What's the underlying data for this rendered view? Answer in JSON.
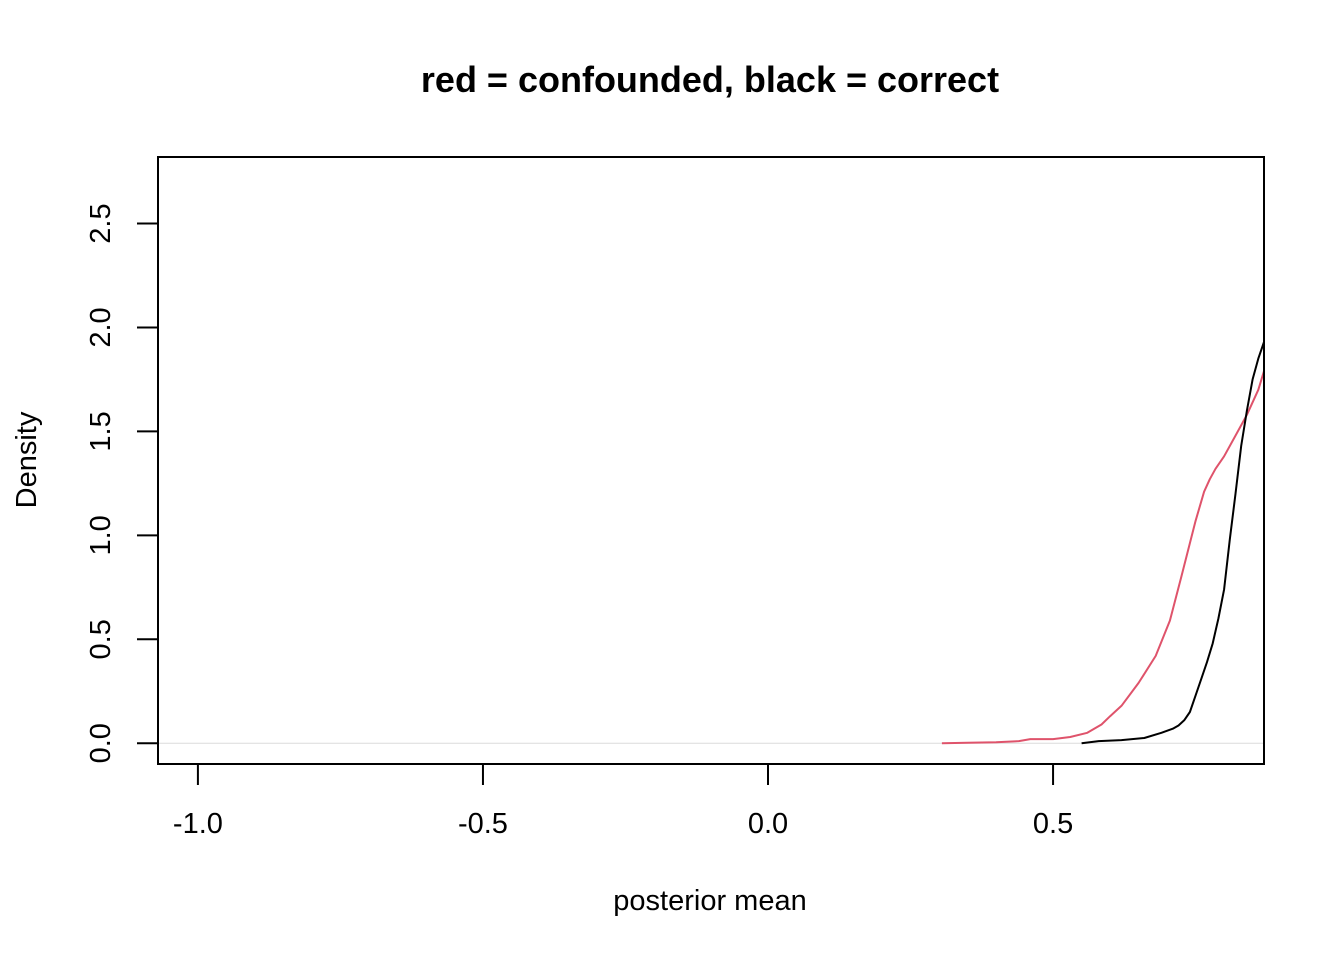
{
  "chart_data": {
    "type": "line",
    "title": "red = confounded, black = correct",
    "xlabel": "posterior mean",
    "ylabel": "Density",
    "xlim": [
      -1.07,
      0.87
    ],
    "ylim": [
      -0.1,
      2.82
    ],
    "x_ticks": [
      -1.0,
      -0.5,
      0.0,
      0.5
    ],
    "x_tick_labels": [
      "-1.0",
      "-0.5",
      "0.0",
      "0.5"
    ],
    "y_ticks": [
      0.0,
      0.5,
      1.0,
      1.5,
      2.0,
      2.5
    ],
    "y_tick_labels": [
      "0.0",
      "0.5",
      "1.0",
      "1.5",
      "2.0",
      "2.5"
    ],
    "grid": false,
    "zero_line": true,
    "colors": {
      "zero_line": "#dcdcdc",
      "frame": "#000000"
    },
    "series": [
      {
        "color": "#df536b",
        "x": [
          0.305,
          0.35,
          0.4,
          0.44,
          0.46,
          0.48,
          0.5,
          0.53,
          0.56,
          0.585,
          0.6,
          0.62,
          0.65,
          0.68,
          0.705,
          0.725,
          0.75,
          0.765,
          0.775,
          0.785,
          0.8,
          0.82,
          0.84,
          0.86,
          0.87
        ],
        "y": [
          0.0,
          0.002,
          0.005,
          0.01,
          0.02,
          0.02,
          0.02,
          0.03,
          0.05,
          0.09,
          0.13,
          0.18,
          0.29,
          0.42,
          0.59,
          0.8,
          1.07,
          1.21,
          1.27,
          1.32,
          1.38,
          1.48,
          1.58,
          1.7,
          1.79
        ]
      },
      {
        "color": "#000000",
        "x": [
          0.55,
          0.58,
          0.62,
          0.66,
          0.69,
          0.71,
          0.72,
          0.73,
          0.74,
          0.75,
          0.76,
          0.77,
          0.78,
          0.79,
          0.8,
          0.81,
          0.82,
          0.83,
          0.84,
          0.85,
          0.86,
          0.87
        ],
        "y": [
          0.0,
          0.01,
          0.015,
          0.025,
          0.05,
          0.07,
          0.085,
          0.11,
          0.15,
          0.23,
          0.31,
          0.39,
          0.48,
          0.6,
          0.74,
          0.98,
          1.2,
          1.43,
          1.6,
          1.75,
          1.85,
          1.93
        ]
      }
    ]
  }
}
